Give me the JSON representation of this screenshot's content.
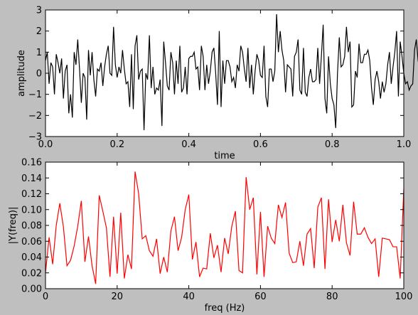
{
  "chart_data": [
    {
      "type": "line",
      "title": "",
      "xlabel": "time",
      "ylabel": "amplitude",
      "xlim": [
        0.0,
        1.0
      ],
      "ylim": [
        -3,
        3
      ],
      "xticks": [
        "0.0",
        "0.2",
        "0.4",
        "0.6",
        "0.8",
        "1.0"
      ],
      "yticks": [
        "−3",
        "−2",
        "−1",
        "0",
        "1",
        "2",
        "3"
      ],
      "grid": false,
      "series": [
        {
          "color": "#000000",
          "x_start": 0.0,
          "x_step": 0.005,
          "y": [
            0.6,
            1.0,
            -0.5,
            0.5,
            0.3,
            -1.0,
            0.9,
            0.5,
            0.0,
            0.7,
            -1.2,
            0.1,
            0.4,
            -1.9,
            -1.0,
            -2.1,
            1.0,
            0.4,
            1.6,
            0.2,
            -1.4,
            0.0,
            -0.2,
            -2.2,
            1.1,
            -0.1,
            1.0,
            -0.3,
            -1.1,
            0.2,
            0.1,
            0.5,
            -0.6,
            0.3,
            0.9,
            1.3,
            0.0,
            -0.1,
            2.2,
            0.4,
            -0.2,
            0.3,
            0.0,
            1.1,
            0.2,
            -0.5,
            -0.4,
            -1.6,
            0.9,
            -1.7,
            1.3,
            1.8,
            -0.3,
            0.1,
            0.2,
            -2.7,
            0.0,
            -0.3,
            1.8,
            -0.7,
            0.3,
            -1.0,
            -0.7,
            -0.8,
            -0.3,
            -2.5,
            1.5,
            0.5,
            -0.6,
            -0.8,
            1.0,
            0.5,
            -1.0,
            0.6,
            -0.5,
            1.3,
            -0.9,
            -0.7,
            0.3,
            -1.0,
            0.7,
            0.8,
            0.8,
            1.0,
            0.2,
            0.3,
            -0.8,
            1.3,
            0.8,
            -0.8,
            0.4,
            -0.5,
            0.1,
            1.0,
            1.2,
            0.0,
            -1.5,
            2.0,
            -1.6,
            0.6,
            -0.5,
            0.6,
            0.6,
            0.3,
            -0.4,
            -0.2,
            -0.7,
            0.4,
            0.1,
            1.3,
            1.0,
            0.2,
            -0.4,
            1.2,
            -0.7,
            0.4,
            -1.0,
            0.1,
            0.9,
            0.6,
            -0.1,
            -0.2,
            1.3,
            -1.1,
            -1.6,
            0.2,
            0.2,
            -0.4,
            0.1,
            2.8,
            1.0,
            2.0,
            1.1,
            0.6,
            -0.9,
            0.4,
            0.3,
            0.2,
            -1.1,
            0.8,
            1.0,
            1.6,
            -0.8,
            -1.0,
            1.2,
            -0.9,
            -1.1,
            -0.2,
            0.2,
            -0.4,
            -0.4,
            -0.3,
            1.2,
            -0.5,
            0.8,
            2.3,
            -1.2,
            -1.9,
            0.8,
            -0.5,
            -1.2,
            -1.5,
            -2.6,
            0.0,
            1.7,
            0.3,
            0.4,
            0.8,
            2.2,
            1.0,
            1.5,
            -1.6,
            -1.5,
            0.1,
            -0.2,
            1.4,
            0.5,
            0.5,
            0.9,
            0.9,
            1.1,
            0.6,
            -0.7,
            -1.5,
            -0.3,
            0.1,
            -0.4,
            -1.2,
            -0.4,
            -0.9,
            -0.5,
            0.4,
            1.0,
            -0.5,
            0.3,
            1.0,
            2.0,
            -1.1,
            1.5,
            0.8,
            0.0,
            -0.5,
            -0.4,
            -0.8,
            -0.6,
            -0.5,
            1.1,
            1.6,
            0.6,
            0.1,
            -0.7,
            0.5,
            0.1,
            -1.1,
            1.1,
            0.4,
            1.0,
            0.3,
            1.0,
            0.1,
            -0.6,
            0.7,
            1.6,
            -1.0,
            1.0,
            -0.4,
            0.9,
            0.1,
            1.1,
            0.6,
            0.8
          ]
        }
      ]
    },
    {
      "type": "line",
      "title": "",
      "xlabel": "freq (Hz)",
      "ylabel": "|Y(freq)|",
      "xlim": [
        0,
        100
      ],
      "ylim": [
        0.0,
        0.16
      ],
      "xticks": [
        "0",
        "20",
        "40",
        "60",
        "80",
        "100"
      ],
      "yticks": [
        "0.00",
        "0.02",
        "0.04",
        "0.06",
        "0.08",
        "0.10",
        "0.12",
        "0.14",
        "0.16"
      ],
      "grid": false,
      "series": [
        {
          "color": "#ff0000",
          "x": [
            0,
            1,
            2,
            3,
            4,
            5,
            6,
            7,
            8,
            9,
            10,
            11,
            12,
            13,
            14,
            15,
            16,
            17,
            18,
            19,
            20,
            21,
            22,
            23,
            24,
            25,
            26,
            27,
            28,
            29,
            30,
            31,
            32,
            33,
            34,
            35,
            36,
            37,
            38,
            39,
            40,
            41,
            42,
            43,
            44,
            45,
            46,
            47,
            48,
            49,
            50,
            51,
            52,
            53,
            54,
            55,
            56,
            57,
            58,
            59,
            60,
            61,
            62,
            63,
            64,
            65,
            66,
            67,
            68,
            69,
            70,
            71,
            72,
            73,
            74,
            75,
            76,
            77,
            78,
            79,
            80,
            81,
            82,
            83,
            84,
            85,
            86,
            87,
            88,
            89,
            90,
            91,
            92,
            93,
            94,
            95,
            96,
            97,
            98,
            99,
            100
          ],
          "y": [
            0.02,
            0.065,
            0.031,
            0.08,
            0.108,
            0.078,
            0.029,
            0.036,
            0.054,
            0.079,
            0.111,
            0.034,
            0.066,
            0.029,
            0.006,
            0.118,
            0.098,
            0.077,
            0.015,
            0.091,
            0.019,
            0.096,
            0.013,
            0.043,
            0.025,
            0.148,
            0.12,
            0.063,
            0.067,
            0.048,
            0.041,
            0.063,
            0.019,
            0.04,
            0.021,
            0.073,
            0.091,
            0.048,
            0.065,
            0.1,
            0.119,
            0.037,
            0.059,
            0.015,
            0.026,
            0.025,
            0.07,
            0.039,
            0.055,
            0.021,
            0.064,
            0.044,
            0.079,
            0.098,
            0.023,
            0.02,
            0.141,
            0.1,
            0.115,
            0.018,
            0.097,
            0.015,
            0.079,
            0.064,
            0.057,
            0.106,
            0.09,
            0.109,
            0.045,
            0.033,
            0.034,
            0.06,
            0.029,
            0.069,
            0.076,
            0.026,
            0.103,
            0.115,
            0.025,
            0.113,
            0.059,
            0.087,
            0.06,
            0.106,
            0.058,
            0.042,
            0.11,
            0.069,
            0.069,
            0.077,
            0.065,
            0.057,
            0.063,
            0.015,
            0.064,
            0.063,
            0.062,
            0.053,
            0.053,
            0.013,
            0.126
          ]
        }
      ]
    }
  ]
}
